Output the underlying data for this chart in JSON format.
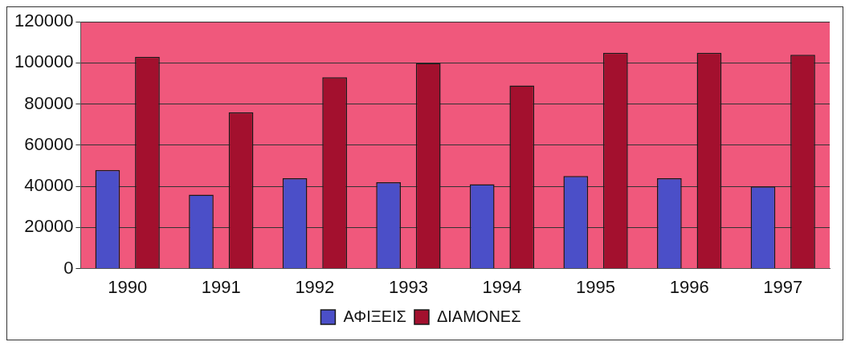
{
  "chart_data": {
    "type": "bar",
    "categories": [
      "1990",
      "1991",
      "1992",
      "1993",
      "1994",
      "1995",
      "1996",
      "1997"
    ],
    "series": [
      {
        "name": "ΑΦΙΞΕΙΣ",
        "color": "#4b4fc8",
        "values": [
          48000,
          36000,
          44000,
          42000,
          41000,
          45000,
          44000,
          40000
        ]
      },
      {
        "name": "ΔΙΑΜΟΝΕΣ",
        "color": "#a3102e",
        "values": [
          103000,
          76000,
          93000,
          100000,
          89000,
          105000,
          105000,
          104000
        ]
      }
    ],
    "ylim": [
      0,
      120000
    ],
    "yticks": [
      0,
      20000,
      40000,
      60000,
      80000,
      100000,
      120000
    ],
    "grid": "y",
    "legend": "bottom"
  }
}
